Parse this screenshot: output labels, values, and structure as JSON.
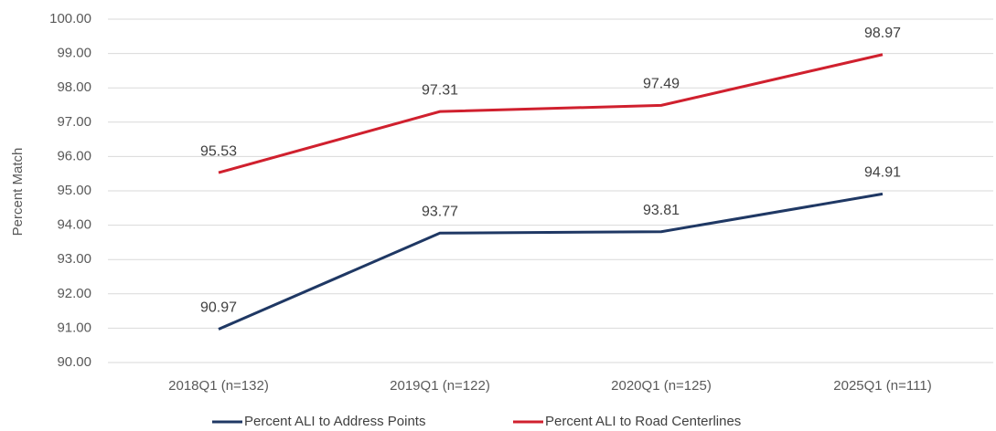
{
  "chart_data": {
    "type": "line",
    "y_label": "Percent Match",
    "categories": [
      "2018Q1 (n=132)",
      "2019Q1 (n=122)",
      "2020Q1 (n=125)",
      "2025Q1 (n=111)"
    ],
    "series": [
      {
        "name": "Percent ALI to Address Points",
        "color": "#1f3864",
        "values": [
          90.97,
          93.77,
          93.81,
          94.91
        ]
      },
      {
        "name": "Percent ALI to Road Centerlines",
        "color": "#d0202e",
        "values": [
          95.53,
          97.31,
          97.49,
          98.97
        ]
      }
    ],
    "ylim": [
      90,
      100
    ],
    "yticks": [
      {
        "value": 90,
        "label": "90.00"
      },
      {
        "value": 91,
        "label": "91.00"
      },
      {
        "value": 92,
        "label": "92.00"
      },
      {
        "value": 93,
        "label": "93.00"
      },
      {
        "value": 94,
        "label": "94.00"
      },
      {
        "value": 95,
        "label": "95.00"
      },
      {
        "value": 96,
        "label": "96.00"
      },
      {
        "value": 97,
        "label": "97.00"
      },
      {
        "value": 98,
        "label": "98.00"
      },
      {
        "value": 99,
        "label": "99.00"
      },
      {
        "value": 100,
        "label": "100.00"
      }
    ],
    "grid": true,
    "legend": "bottom"
  }
}
